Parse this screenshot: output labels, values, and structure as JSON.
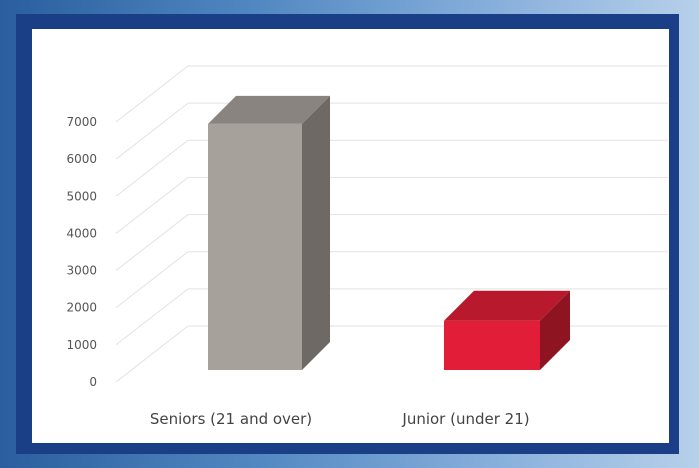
{
  "chart_data": {
    "type": "bar",
    "categories": [
      "Seniors (21 and over)",
      "Junior (under 21)"
    ],
    "values": [
      6950,
      1650
    ],
    "ylim": [
      0,
      7000
    ],
    "yticks": [
      0,
      1000,
      2000,
      3000,
      4000,
      5000,
      6000,
      7000
    ],
    "grid": true,
    "style": "3d-column",
    "colors": {
      "seniors_front": "#a7a19c",
      "seniors_top": "#8a8480",
      "seniors_side": "#6e6964",
      "junior_front": "#e21d38",
      "junior_top": "#b8192c",
      "junior_side": "#8e1422",
      "grid": "#e2e2e2"
    }
  }
}
